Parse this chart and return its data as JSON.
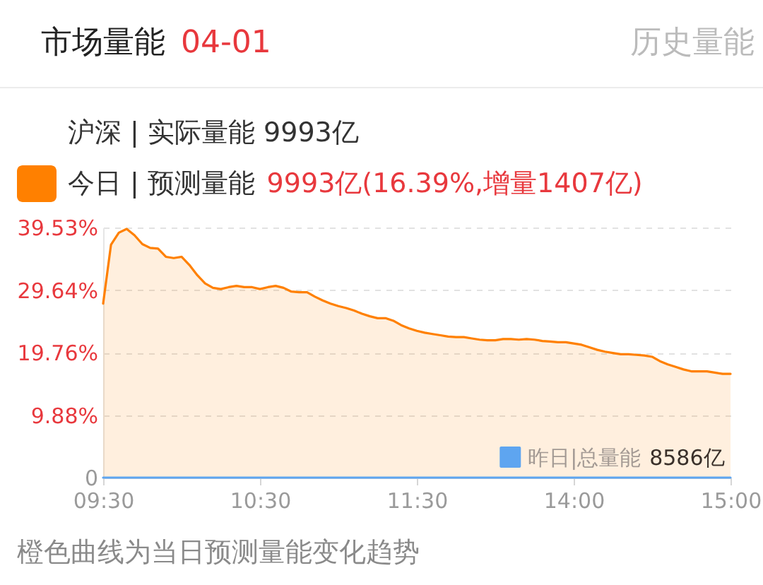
{
  "chart_data": {
    "type": "area",
    "title": "市场量能",
    "subtitle": "04-01",
    "annotations": [
      "历史量能",
      "沪深 | 实际量能 9993亿",
      "9993亿(16.39%,增量1407亿)",
      "8586亿",
      "橙色曲线为当日预测量能变化趋势"
    ],
    "categories": [
      "09:30",
      null,
      null,
      null,
      null,
      null,
      null,
      null,
      null,
      null,
      null,
      null,
      null,
      null,
      null,
      null,
      null,
      null,
      null,
      null,
      "10:30",
      null,
      null,
      null,
      null,
      null,
      null,
      null,
      null,
      null,
      null,
      null,
      null,
      null,
      null,
      null,
      null,
      null,
      null,
      null,
      "11:30",
      null,
      null,
      null,
      null,
      null,
      null,
      null,
      null,
      null,
      null,
      null,
      null,
      null,
      null,
      null,
      null,
      null,
      null,
      null,
      "14:00",
      null,
      null,
      null,
      null,
      null,
      null,
      null,
      null,
      null,
      null,
      null,
      null,
      null,
      null,
      null,
      null,
      null,
      null,
      null,
      "15:00"
    ],
    "ylim": [
      0,
      39.53
    ],
    "yticks": [
      0,
      {
        "value": 9.88,
        "label": "9.88%"
      },
      {
        "value": 19.76,
        "label": "19.76%"
      },
      {
        "value": 29.64,
        "label": "29.64%"
      },
      {
        "value": 39.53,
        "label": "39.53%"
      }
    ],
    "grid": "y",
    "legend": "top left",
    "series": [
      {
        "name": "今日 | 预测量能",
        "color": "#ff8000",
        "values": [
          27.5,
          36.8,
          38.7,
          39.3,
          38.3,
          36.9,
          36.3,
          36.2,
          34.9,
          34.7,
          34.9,
          33.6,
          32.0,
          30.7,
          30.0,
          29.8,
          30.1,
          30.3,
          30.1,
          30.1,
          29.8,
          30.1,
          30.3,
          30.0,
          29.4,
          29.3,
          29.3,
          28.6,
          28.0,
          27.5,
          27.1,
          26.8,
          26.4,
          25.9,
          25.5,
          25.2,
          25.2,
          24.8,
          24.1,
          23.6,
          23.2,
          22.9,
          22.7,
          22.5,
          22.3,
          22.2,
          22.2,
          22.0,
          21.8,
          21.7,
          21.7,
          21.9,
          21.9,
          21.8,
          21.9,
          21.8,
          21.6,
          21.5,
          21.4,
          21.4,
          21.2,
          21.0,
          20.6,
          20.2,
          19.9,
          19.7,
          19.5,
          19.5,
          19.4,
          19.3,
          19.1,
          18.4,
          17.9,
          17.5,
          17.1,
          16.8,
          16.8,
          16.8,
          16.6,
          16.4,
          16.4
        ]
      },
      {
        "name": "昨日|总量能",
        "type": "line",
        "color": "#5ea5f0",
        "values": [
          0,
          0,
          0,
          0,
          0,
          0,
          0,
          0,
          0,
          0,
          0,
          0,
          0,
          0,
          0,
          0,
          0,
          0,
          0,
          0,
          0,
          0,
          0,
          0,
          0,
          0,
          0,
          0,
          0,
          0,
          0,
          0,
          0,
          0,
          0,
          0,
          0,
          0,
          0,
          0,
          0,
          0,
          0,
          0,
          0,
          0,
          0,
          0,
          0,
          0,
          0,
          0,
          0,
          0,
          0,
          0,
          0,
          0,
          0,
          0,
          0,
          0,
          0,
          0,
          0,
          0,
          0,
          0,
          0,
          0,
          0,
          0,
          0,
          0,
          0,
          0,
          0,
          0,
          0,
          0,
          0
        ]
      }
    ]
  }
}
